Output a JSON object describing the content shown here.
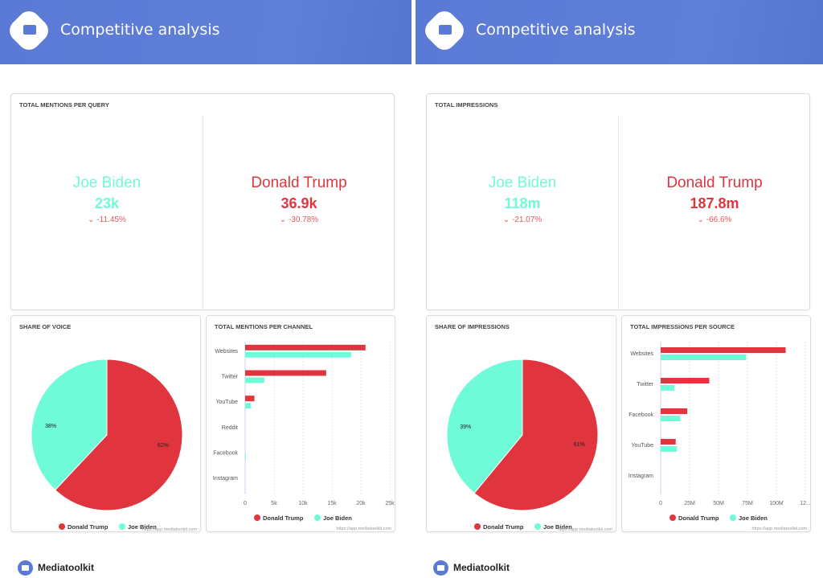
{
  "colors": {
    "trump": "#e0353f",
    "biden": "#70fbd8",
    "header": "#5a7ad6"
  },
  "footer": {
    "brand": "Mediatoolkit"
  },
  "pages": [
    {
      "header_title": "Competitive analysis",
      "stats": {
        "title": "TOTAL MENTIONS PER QUERY",
        "items": [
          {
            "name": "Joe Biden",
            "value": "23k",
            "change": "-11.45%",
            "color": "#70fbd8"
          },
          {
            "name": "Donald Trump",
            "value": "36.9k",
            "change": "-30.78%",
            "color": "#e0353f"
          }
        ]
      },
      "pie": {
        "title": "SHARE OF VOICE",
        "type": "pie",
        "slices": [
          {
            "name": "Donald Trump",
            "value": 62,
            "label": "62%"
          },
          {
            "name": "Joe Biden",
            "value": 38,
            "label": "38%"
          }
        ],
        "watermark": "https://app.mediatoolkit.com"
      },
      "bars": {
        "title": "TOTAL MENTIONS PER CHANNEL",
        "type": "bar",
        "categories": [
          "Websites",
          "Twitter",
          "YouTube",
          "Reddit",
          "Facebook",
          "Instagram"
        ],
        "series": [
          {
            "name": "Donald Trump",
            "values": [
              20800,
              14000,
              1600,
              0,
              0,
              0
            ]
          },
          {
            "name": "Joe Biden",
            "values": [
              18300,
              3300,
              1000,
              0,
              100,
              0
            ]
          }
        ],
        "xlim": [
          0,
          25000
        ],
        "ticks": [
          "0",
          "5k",
          "10k",
          "15k",
          "20k",
          "25k"
        ],
        "legend": "bottom",
        "watermark": "https://app.mediatoolkit.com"
      }
    },
    {
      "header_title": "Competitive analysis",
      "stats": {
        "title": "TOTAL IMPRESSIONS",
        "items": [
          {
            "name": "Joe Biden",
            "value": "118m",
            "change": "-21.07%",
            "color": "#70fbd8"
          },
          {
            "name": "Donald Trump",
            "value": "187.8m",
            "change": "-66.6%",
            "color": "#e0353f"
          }
        ]
      },
      "pie": {
        "title": "SHARE OF IMPRESSIONS",
        "type": "pie",
        "slices": [
          {
            "name": "Donald Trump",
            "value": 61,
            "label": "61%"
          },
          {
            "name": "Joe Biden",
            "value": 39,
            "label": "39%"
          }
        ],
        "watermark": "https://app.mediatoolkit.com"
      },
      "bars": {
        "title": "TOTAL IMPRESSIONS PER SOURCE",
        "type": "bar",
        "categories": [
          "Websites",
          "Twitter",
          "Facebook",
          "YouTube",
          "Instagram"
        ],
        "series": [
          {
            "name": "Donald Trump",
            "values": [
              108000000,
              42000000,
              23000000,
              13000000,
              0
            ]
          },
          {
            "name": "Joe Biden",
            "values": [
              74000000,
              12000000,
              17000000,
              14000000,
              0
            ]
          }
        ],
        "xlim": [
          0,
          125000000
        ],
        "ticks": [
          "0",
          "25M",
          "50M",
          "75M",
          "100M",
          "12..."
        ],
        "legend": "bottom",
        "watermark": "https://app.mediatoolkit.com"
      }
    }
  ]
}
